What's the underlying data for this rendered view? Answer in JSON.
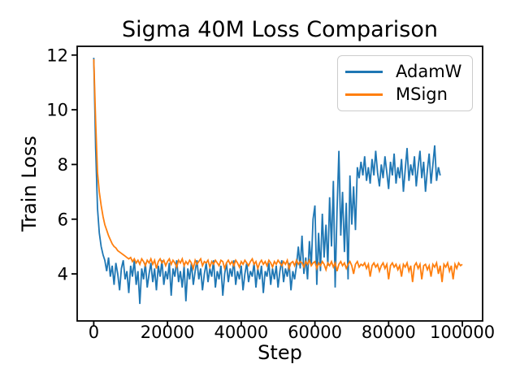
{
  "chart_data": {
    "type": "line",
    "title": "Sigma 40M Loss Comparison",
    "xlabel": "Step",
    "ylabel": "Train Loss",
    "xlim": [
      -4500,
      105500
    ],
    "ylim": [
      2.28,
      12.32
    ],
    "xticks": [
      0,
      20000,
      40000,
      60000,
      80000,
      100000
    ],
    "xtick_labels": [
      "0",
      "20000",
      "40000",
      "60000",
      "80000",
      "100000"
    ],
    "yticks": [
      4,
      6,
      8,
      10,
      12
    ],
    "ytick_labels": [
      "4",
      "6",
      "8",
      "10",
      "12"
    ],
    "grid": false,
    "legend_position": "upper right",
    "axis_color": "#000000",
    "series": [
      {
        "name": "AdamW",
        "color": "#1f77b4",
        "x_start": 0,
        "x_interval": 500,
        "values": [
          11.9,
          8.6,
          6.4,
          5.5,
          5.0,
          4.7,
          4.5,
          4.1,
          4.6,
          3.9,
          4.3,
          3.6,
          4.4,
          4.0,
          3.4,
          4.2,
          4.5,
          3.8,
          4.1,
          3.3,
          4.3,
          3.9,
          4.5,
          3.6,
          4.1,
          2.9,
          4.2,
          3.8,
          4.4,
          3.5,
          4.0,
          4.4,
          3.7,
          4.2,
          3.4,
          4.3,
          3.9,
          4.5,
          3.6,
          4.1,
          3.8,
          4.4,
          3.2,
          4.2,
          3.9,
          4.5,
          3.7,
          4.1,
          3.5,
          4.3,
          3.0,
          4.2,
          3.8,
          4.4,
          3.6,
          4.1,
          4.5,
          3.8,
          4.2,
          3.4,
          4.0,
          4.4,
          3.7,
          4.2,
          3.9,
          4.5,
          3.5,
          4.1,
          3.8,
          4.3,
          3.2,
          4.0,
          4.4,
          3.7,
          4.2,
          3.9,
          4.5,
          3.6,
          4.1,
          3.8,
          4.3,
          3.4,
          4.0,
          4.4,
          3.7,
          4.1,
          3.9,
          4.4,
          3.5,
          4.2,
          3.8,
          4.3,
          3.3,
          4.1,
          3.9,
          4.4,
          3.6,
          4.2,
          3.8,
          4.3,
          3.5,
          4.1,
          4.5,
          3.7,
          4.2,
          3.9,
          4.4,
          3.4,
          4.1,
          3.8,
          4.3,
          5.0,
          4.2,
          5.4,
          4.0,
          4.6,
          3.8,
          5.2,
          4.3,
          6.0,
          6.5,
          3.6,
          5.5,
          4.1,
          6.2,
          4.6,
          5.8,
          4.3,
          6.8,
          5.0,
          7.4,
          3.5,
          6.3,
          8.5,
          5.4,
          7.0,
          4.8,
          6.6,
          3.8,
          7.6,
          5.8,
          7.2,
          5.6,
          7.9,
          7.5,
          8.1,
          7.6,
          8.3,
          7.4,
          7.9,
          7.3,
          8.2,
          7.6,
          8.5,
          7.7,
          7.2,
          8.0,
          7.5,
          8.3,
          7.7,
          7.1,
          8.1,
          7.6,
          8.4,
          7.3,
          7.9,
          7.5,
          8.2,
          7.0,
          7.8,
          8.6,
          7.4,
          8.0,
          7.6,
          8.3,
          7.2,
          7.9,
          8.5,
          7.5,
          8.1,
          7.0,
          7.8,
          8.4,
          7.3,
          8.0,
          8.7,
          7.4,
          7.9,
          7.6
        ]
      },
      {
        "name": "MSign",
        "color": "#ff7f0e",
        "x_start": 0,
        "x_interval": 500,
        "values": [
          11.85,
          9.6,
          7.7,
          7.0,
          6.5,
          6.1,
          5.8,
          5.6,
          5.4,
          5.25,
          5.1,
          5.0,
          4.95,
          4.85,
          4.8,
          4.75,
          4.7,
          4.65,
          4.6,
          4.55,
          4.6,
          4.45,
          4.55,
          4.4,
          4.5,
          4.35,
          4.55,
          4.45,
          4.3,
          4.5,
          4.4,
          4.55,
          4.35,
          4.5,
          4.2,
          4.45,
          4.55,
          4.4,
          4.5,
          4.3,
          4.45,
          4.55,
          4.35,
          4.5,
          4.4,
          4.25,
          4.5,
          4.4,
          4.55,
          4.3,
          4.45,
          4.35,
          4.5,
          4.4,
          4.2,
          4.5,
          4.35,
          4.45,
          4.55,
          4.3,
          4.45,
          4.4,
          4.5,
          4.25,
          4.45,
          4.35,
          4.5,
          4.4,
          4.3,
          4.5,
          4.45,
          4.2,
          4.4,
          4.5,
          4.35,
          4.45,
          4.3,
          4.5,
          4.4,
          4.25,
          4.45,
          4.35,
          4.5,
          4.4,
          4.3,
          4.45,
          4.55,
          4.35,
          4.45,
          4.2,
          4.4,
          4.5,
          4.35,
          4.45,
          4.3,
          4.5,
          4.4,
          4.25,
          4.45,
          4.35,
          4.5,
          4.4,
          4.3,
          4.45,
          4.35,
          4.5,
          4.2,
          4.4,
          4.45,
          4.3,
          4.5,
          4.35,
          4.45,
          4.4,
          4.25,
          4.45,
          4.35,
          4.5,
          4.3,
          4.4,
          4.45,
          4.2,
          4.4,
          4.3,
          4.45,
          4.35,
          4.15,
          4.4,
          4.3,
          4.45,
          4.25,
          4.4,
          4.1,
          4.35,
          4.45,
          4.3,
          4.4,
          4.2,
          4.35,
          4.45,
          4.3,
          4.0,
          4.35,
          4.45,
          4.25,
          4.35,
          4.3,
          4.4,
          4.2,
          4.35,
          3.9,
          4.3,
          4.4,
          4.25,
          4.35,
          4.1,
          4.3,
          4.4,
          4.2,
          4.35,
          3.8,
          4.3,
          4.4,
          4.25,
          4.35,
          4.15,
          4.3,
          3.9,
          4.35,
          4.25,
          4.4,
          4.1,
          4.3,
          3.7,
          4.3,
          4.4,
          4.2,
          4.35,
          3.8,
          4.3,
          4.35,
          4.15,
          4.3,
          3.9,
          4.35,
          4.25,
          4.4,
          4.0,
          4.3,
          3.7,
          4.35,
          4.25,
          4.4,
          4.1,
          4.3,
          3.8,
          4.35,
          4.2,
          4.4,
          4.3,
          4.35
        ]
      }
    ]
  }
}
